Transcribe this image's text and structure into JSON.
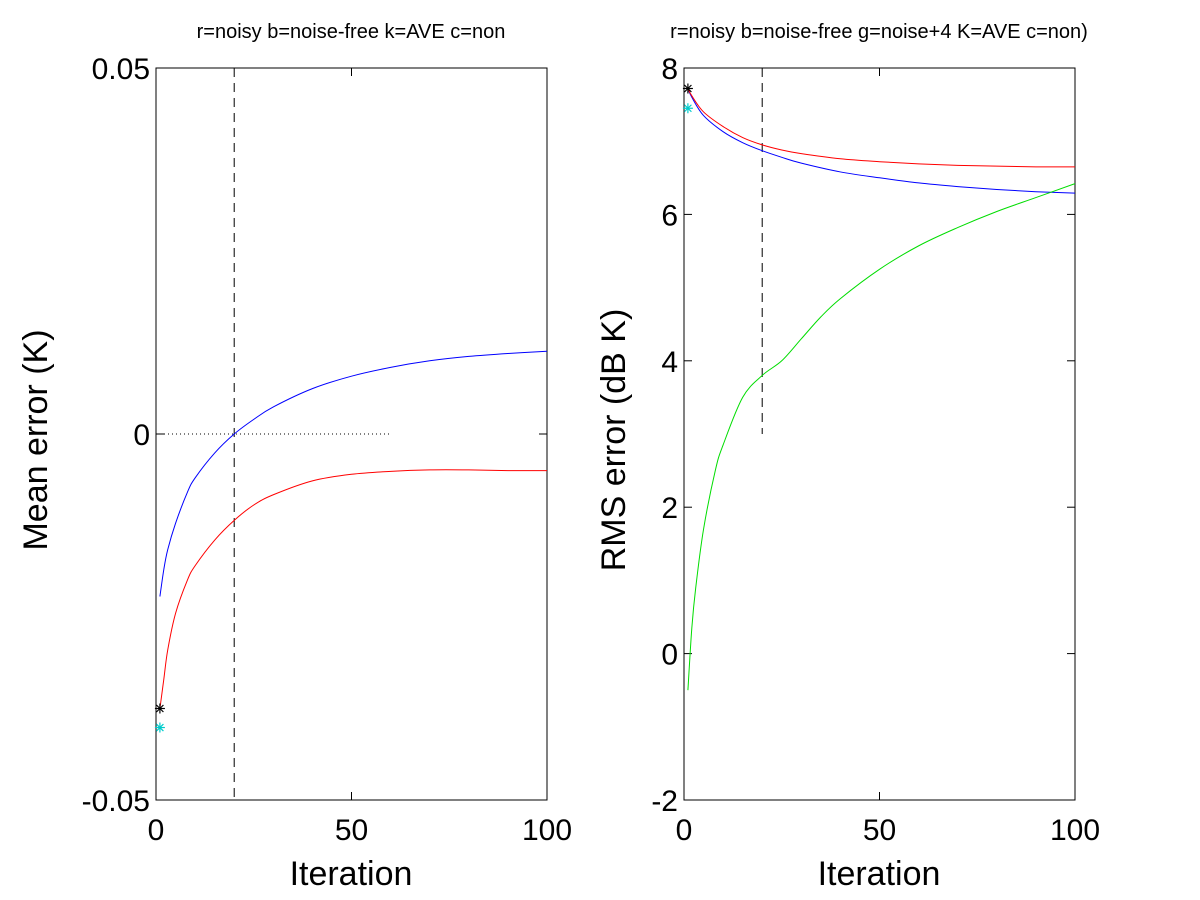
{
  "chart_data": [
    {
      "type": "line",
      "title": "r=noisy b=noise-free k=AVE c=non",
      "xlabel": "Iteration",
      "ylabel": "Mean error (K)",
      "xlim": [
        0,
        100
      ],
      "ylim": [
        -0.05,
        0.05
      ],
      "xticks": [
        0,
        50,
        100
      ],
      "xtick_labels": [
        "0",
        "50",
        "100"
      ],
      "yticks": [
        -0.05,
        0,
        0.05
      ],
      "ytick_labels": [
        "-0.05",
        "0",
        "0.05"
      ],
      "grid": false,
      "series": [
        {
          "color": "#0000ff",
          "x": [
            1,
            2,
            3,
            5,
            8,
            10,
            15,
            20,
            25,
            30,
            40,
            50,
            60,
            70,
            80,
            90,
            100
          ],
          "y": [
            -0.0222,
            -0.0185,
            -0.0158,
            -0.0122,
            -0.008,
            -0.006,
            -0.0026,
            0.0,
            0.002,
            0.0037,
            0.0062,
            0.0079,
            0.0091,
            0.01,
            0.0106,
            0.011,
            0.0113
          ]
        },
        {
          "color": "#ff0000",
          "x": [
            1,
            2,
            3,
            5,
            8,
            10,
            15,
            20,
            25,
            30,
            40,
            50,
            60,
            70,
            80,
            90,
            100
          ],
          "y": [
            -0.0375,
            -0.0335,
            -0.0295,
            -0.0245,
            -0.02,
            -0.018,
            -0.0145,
            -0.0118,
            -0.0097,
            -0.0083,
            -0.0064,
            -0.0055,
            -0.0051,
            -0.0049,
            -0.0049,
            -0.005,
            -0.005
          ]
        },
        {
          "color": "#000000",
          "type": "scatter",
          "marker": "asterisk",
          "x": [
            1
          ],
          "y": [
            -0.0375
          ]
        },
        {
          "color": "#00cccc",
          "type": "scatter",
          "marker": "asterisk",
          "x": [
            1
          ],
          "y": [
            -0.0401
          ]
        }
      ],
      "reference_lines": [
        {
          "orientation": "vertical",
          "style": "dashed",
          "color": "#000000",
          "x": 20,
          "y_range": [
            -0.05,
            0.05
          ]
        },
        {
          "orientation": "horizontal",
          "style": "dotted",
          "color": "#000000",
          "y": 0,
          "x_range": [
            0,
            60
          ]
        }
      ]
    },
    {
      "type": "line",
      "title": "r=noisy b=noise-free g=noise+4 K=AVE c=non)",
      "xlabel": "Iteration",
      "ylabel": "RMS error (dB K)",
      "xlim": [
        0,
        100
      ],
      "ylim": [
        -2,
        8
      ],
      "xticks": [
        0,
        50,
        100
      ],
      "xtick_labels": [
        "0",
        "50",
        "100"
      ],
      "yticks": [
        -2,
        0,
        2,
        4,
        6,
        8
      ],
      "ytick_labels": [
        "-2",
        "0",
        "2",
        "4",
        "6",
        "8"
      ],
      "grid": false,
      "series": [
        {
          "color": "#0000ff",
          "x": [
            1,
            2,
            5,
            10,
            15,
            20,
            25,
            30,
            40,
            50,
            60,
            70,
            80,
            90,
            100
          ],
          "y": [
            7.72,
            7.6,
            7.35,
            7.13,
            6.98,
            6.87,
            6.78,
            6.7,
            6.58,
            6.5,
            6.43,
            6.38,
            6.34,
            6.31,
            6.29
          ]
        },
        {
          "color": "#ff0000",
          "x": [
            1,
            2,
            5,
            10,
            15,
            20,
            25,
            30,
            40,
            50,
            60,
            70,
            80,
            90,
            100
          ],
          "y": [
            7.72,
            7.62,
            7.4,
            7.2,
            7.05,
            6.95,
            6.88,
            6.83,
            6.76,
            6.72,
            6.69,
            6.67,
            6.66,
            6.65,
            6.65
          ]
        },
        {
          "color": "#00dd00",
          "x": [
            1,
            2,
            3,
            5,
            8,
            10,
            15,
            20,
            25,
            30,
            35,
            40,
            50,
            60,
            70,
            80,
            90,
            100
          ],
          "y": [
            -0.5,
            0.35,
            0.9,
            1.7,
            2.5,
            2.85,
            3.5,
            3.8,
            4.0,
            4.3,
            4.6,
            4.85,
            5.25,
            5.57,
            5.82,
            6.04,
            6.23,
            6.42
          ]
        },
        {
          "color": "#000000",
          "type": "scatter",
          "marker": "asterisk",
          "x": [
            1
          ],
          "y": [
            7.72
          ]
        },
        {
          "color": "#00cccc",
          "type": "scatter",
          "marker": "asterisk",
          "x": [
            1
          ],
          "y": [
            7.45
          ]
        }
      ],
      "reference_lines": [
        {
          "orientation": "vertical",
          "style": "dashed",
          "color": "#000000",
          "x": 20,
          "y_range": [
            3.0,
            8.0
          ]
        }
      ]
    }
  ]
}
